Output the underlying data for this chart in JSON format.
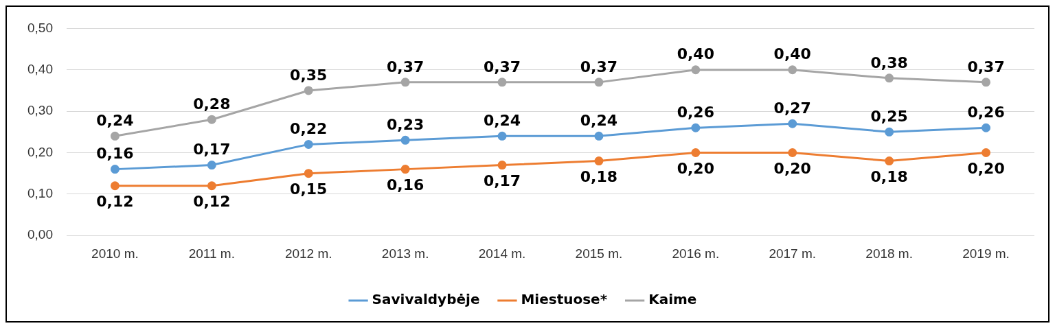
{
  "chart_data": {
    "type": "line",
    "categories": [
      "2010 m.",
      "2011 m.",
      "2012 m.",
      "2013 m.",
      "2014 m.",
      "2015 m.",
      "2016 m.",
      "2017 m.",
      "2018 m.",
      "2019 m."
    ],
    "series": [
      {
        "name": "Savivaldybėje",
        "color": "#5b9bd5",
        "values": [
          0.16,
          0.17,
          0.22,
          0.23,
          0.24,
          0.24,
          0.26,
          0.27,
          0.25,
          0.26
        ],
        "value_labels": [
          "0,16",
          "0,17",
          "0,22",
          "0,23",
          "0,24",
          "0,24",
          "0,26",
          "0,27",
          "0,25",
          "0,26"
        ]
      },
      {
        "name": "Miestuose*",
        "color": "#ed7d31",
        "values": [
          0.12,
          0.12,
          0.15,
          0.16,
          0.17,
          0.18,
          0.2,
          0.2,
          0.18,
          0.2
        ],
        "value_labels": [
          "0,12",
          "0,12",
          "0,15",
          "0,16",
          "0,17",
          "0,18",
          "0,20",
          "0,20",
          "0,18",
          "0,20"
        ]
      },
      {
        "name": "Kaime",
        "color": "#a5a5a5",
        "values": [
          0.24,
          0.28,
          0.35,
          0.37,
          0.37,
          0.37,
          0.4,
          0.4,
          0.38,
          0.37
        ],
        "value_labels": [
          "0,24",
          "0,28",
          "0,35",
          "0,37",
          "0,37",
          "0,37",
          "0,40",
          "0,40",
          "0,38",
          "0,37"
        ]
      }
    ],
    "ylim": [
      0,
      0.5
    ],
    "yticks": [
      {
        "value": 0,
        "label": "0,00"
      },
      {
        "value": 0.1,
        "label": "0,10"
      },
      {
        "value": 0.2,
        "label": "0,20"
      },
      {
        "value": 0.3,
        "label": "0,30"
      },
      {
        "value": 0.4,
        "label": "0,40"
      },
      {
        "value": 0.5,
        "label": "0,50"
      }
    ],
    "grid": "y",
    "legend": "bottom",
    "marker": "circle",
    "line_style": "solid"
  }
}
